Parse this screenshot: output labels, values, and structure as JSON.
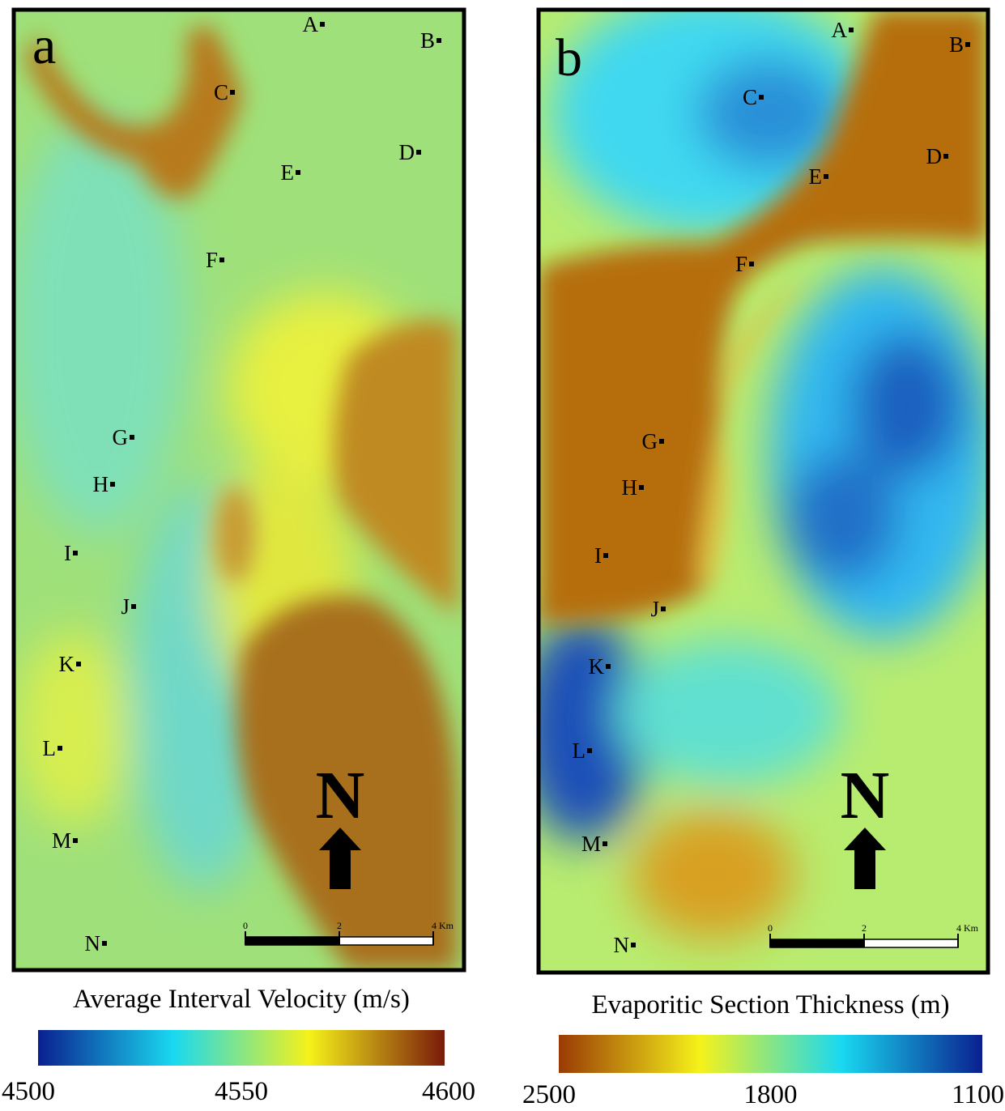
{
  "panels": [
    {
      "letter": "a",
      "wells": [
        "A",
        "B",
        "C",
        "D",
        "E",
        "F",
        "G",
        "H",
        "I",
        "J",
        "K",
        "L",
        "M",
        "N"
      ],
      "north": "N",
      "scale": {
        "ticks": [
          0,
          2,
          {
            "value": 4,
            "label": "4 Km"
          }
        ]
      },
      "colorbar": {
        "title": "Average Interval Velocity (m/s)",
        "ticks": [
          4500,
          4550,
          4600
        ],
        "colors": [
          "#0a1f8f",
          "#19d9f0",
          "#f5f21a",
          "#7a1a0a"
        ]
      }
    },
    {
      "letter": "b",
      "wells": [
        "A",
        "B",
        "C",
        "D",
        "E",
        "F",
        "G",
        "H",
        "I",
        "J",
        "K",
        "L",
        "M",
        "N"
      ],
      "north": "N",
      "scale": {
        "ticks": [
          0,
          2,
          {
            "value": 4,
            "label": "4 Km"
          }
        ]
      },
      "colorbar": {
        "title": "Evaporitic Section Thickness (m)",
        "ticks": [
          2500,
          1800,
          1100
        ],
        "colors": [
          "#9a3a05",
          "#f5f21a",
          "#19d9f0",
          "#0a1f8f"
        ]
      }
    }
  ]
}
